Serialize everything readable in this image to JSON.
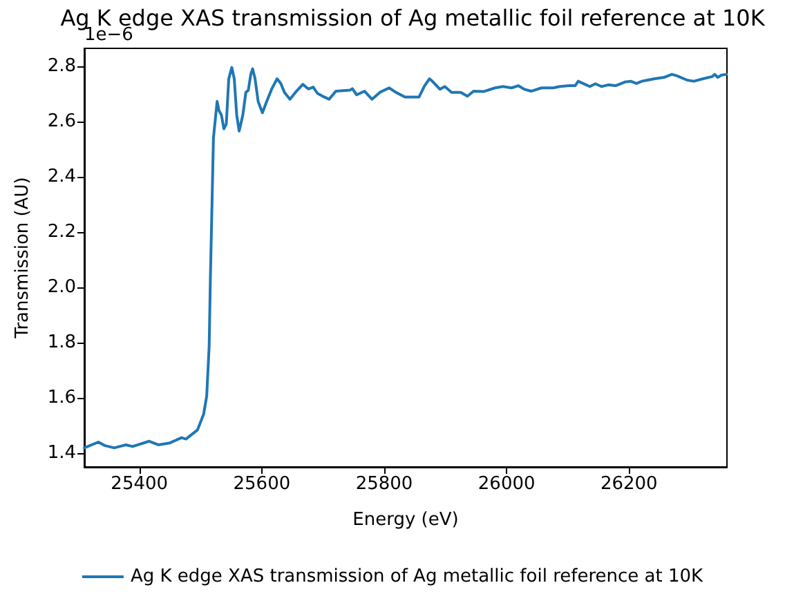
{
  "chart_data": {
    "type": "line",
    "title": "Ag K edge XAS transmission of Ag metallic foil reference at 10K",
    "xlabel": "Energy (eV)",
    "ylabel": "Transmission (AU)",
    "annotations": [
      "1e−6"
    ],
    "x": [
      25310,
      25333,
      25344,
      25359,
      25378,
      25389,
      25416,
      25431,
      25450,
      25469,
      25476,
      25495,
      25505,
      25510,
      25514,
      25516,
      25521,
      25527,
      25530,
      25534,
      25538,
      25542,
      25546,
      25551,
      25555,
      25559,
      25563,
      25569,
      25574,
      25578,
      25582,
      25585,
      25589,
      25594,
      25601,
      25608,
      25616,
      25619,
      25625,
      25631,
      25637,
      25646,
      25655,
      25667,
      25676,
      25684,
      25691,
      25702,
      25710,
      25721,
      25744,
      25748,
      25755,
      25768,
      25780,
      25793,
      25808,
      25819,
      25834,
      25857,
      25866,
      25874,
      25880,
      25891,
      25899,
      25910,
      25925,
      25936,
      25946,
      25963,
      25981,
      25994,
      26008,
      26019,
      26029,
      26040,
      26057,
      26076,
      26087,
      26102,
      26112,
      26117,
      26125,
      26136,
      26145,
      26155,
      26166,
      26178,
      26193,
      26203,
      26212,
      26221,
      26230,
      26242,
      26257,
      26270,
      26278,
      26295,
      26306,
      26321,
      26336,
      26340,
      26345,
      26351,
      26359,
      26360
    ],
    "series": [
      {
        "name": "Ag K edge XAS transmission of Ag metallic foil reference at 10K",
        "color": "#1f77b4",
        "values": [
          1.42,
          1.441,
          1.428,
          1.42,
          1.431,
          1.425,
          1.444,
          1.431,
          1.438,
          1.457,
          1.452,
          1.485,
          1.542,
          1.608,
          1.788,
          2.034,
          2.541,
          2.673,
          2.64,
          2.624,
          2.574,
          2.591,
          2.755,
          2.796,
          2.755,
          2.624,
          2.566,
          2.624,
          2.706,
          2.714,
          2.771,
          2.791,
          2.755,
          2.673,
          2.632,
          2.673,
          2.717,
          2.73,
          2.755,
          2.738,
          2.706,
          2.681,
          2.706,
          2.735,
          2.718,
          2.725,
          2.702,
          2.689,
          2.681,
          2.71,
          2.714,
          2.719,
          2.697,
          2.71,
          2.681,
          2.706,
          2.722,
          2.706,
          2.689,
          2.689,
          2.73,
          2.755,
          2.743,
          2.717,
          2.727,
          2.706,
          2.706,
          2.692,
          2.71,
          2.709,
          2.722,
          2.727,
          2.722,
          2.73,
          2.717,
          2.71,
          2.722,
          2.722,
          2.727,
          2.73,
          2.73,
          2.746,
          2.738,
          2.727,
          2.737,
          2.727,
          2.733,
          2.73,
          2.743,
          2.746,
          2.738,
          2.746,
          2.75,
          2.755,
          2.76,
          2.771,
          2.766,
          2.75,
          2.746,
          2.755,
          2.763,
          2.771,
          2.76,
          2.768,
          2.771,
          2.771
        ]
      }
    ],
    "xlim": [
      25310,
      26360
    ],
    "xticks": [
      25400,
      25600,
      25800,
      26000,
      26200
    ],
    "ylim": [
      1.351,
      2.865
    ],
    "yticks": [
      1.4,
      1.6,
      1.8,
      {
        "value": 2,
        "label": "2.0"
      },
      2.2,
      2.4,
      2.6,
      2.8
    ],
    "grid": false,
    "legend": "bottom",
    "marker": "none",
    "line_style": "solid"
  }
}
